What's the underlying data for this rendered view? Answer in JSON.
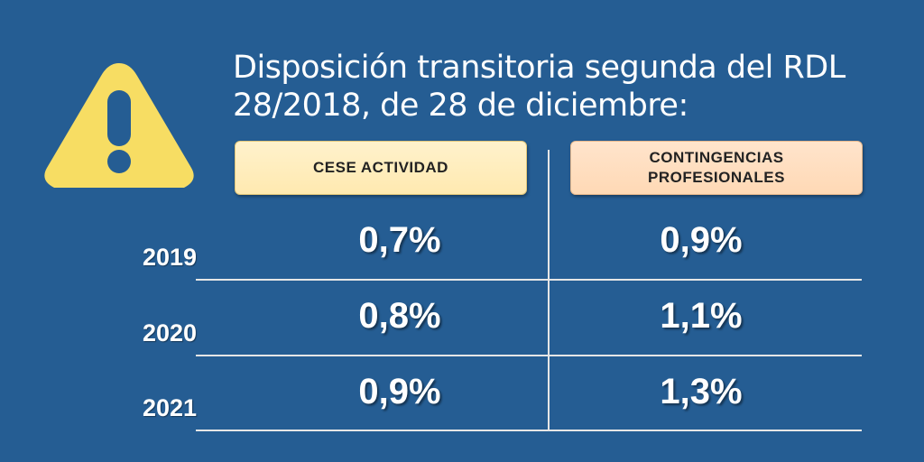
{
  "title": "Disposición transitoria segunda del RDL 28/2018, de 28 de diciembre:",
  "colors": {
    "background": "#255d93",
    "warning_icon": "#f7dd63",
    "text": "#ffffff"
  },
  "icon": "warning-icon",
  "headers": {
    "cese": "CESE ACTIVIDAD",
    "contingencias_line1": "CONTINGENCIAS",
    "contingencias_line2": "PROFESIONALES"
  },
  "rows": [
    {
      "year": "2019",
      "cese": "0,7%",
      "contingencias": "0,9%"
    },
    {
      "year": "2020",
      "cese": "0,8%",
      "contingencias": "1,1%"
    },
    {
      "year": "2021",
      "cese": "0,9%",
      "contingencias": "1,3%"
    }
  ]
}
